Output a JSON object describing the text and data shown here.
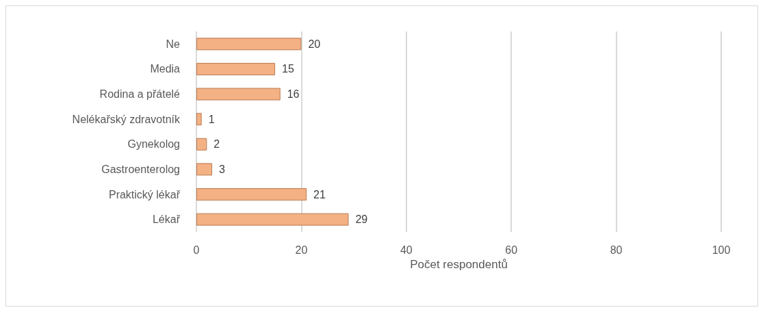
{
  "chart_data": {
    "type": "bar",
    "orientation": "horizontal",
    "xlabel": "Počet respondentů",
    "categories": [
      "Ne",
      "Media",
      "Rodina a přátelé",
      "Nelékařský zdravotník",
      "Gynekolog",
      "Gastroenterolog",
      "Praktický lékař",
      "Lékař"
    ],
    "values": [
      20,
      15,
      16,
      1,
      2,
      3,
      21,
      29
    ],
    "color": "#f4b183",
    "xlim": [
      0,
      100
    ],
    "xticks": [
      0,
      20,
      40,
      60,
      80,
      100
    ],
    "grid": "x",
    "data_labels": true
  }
}
